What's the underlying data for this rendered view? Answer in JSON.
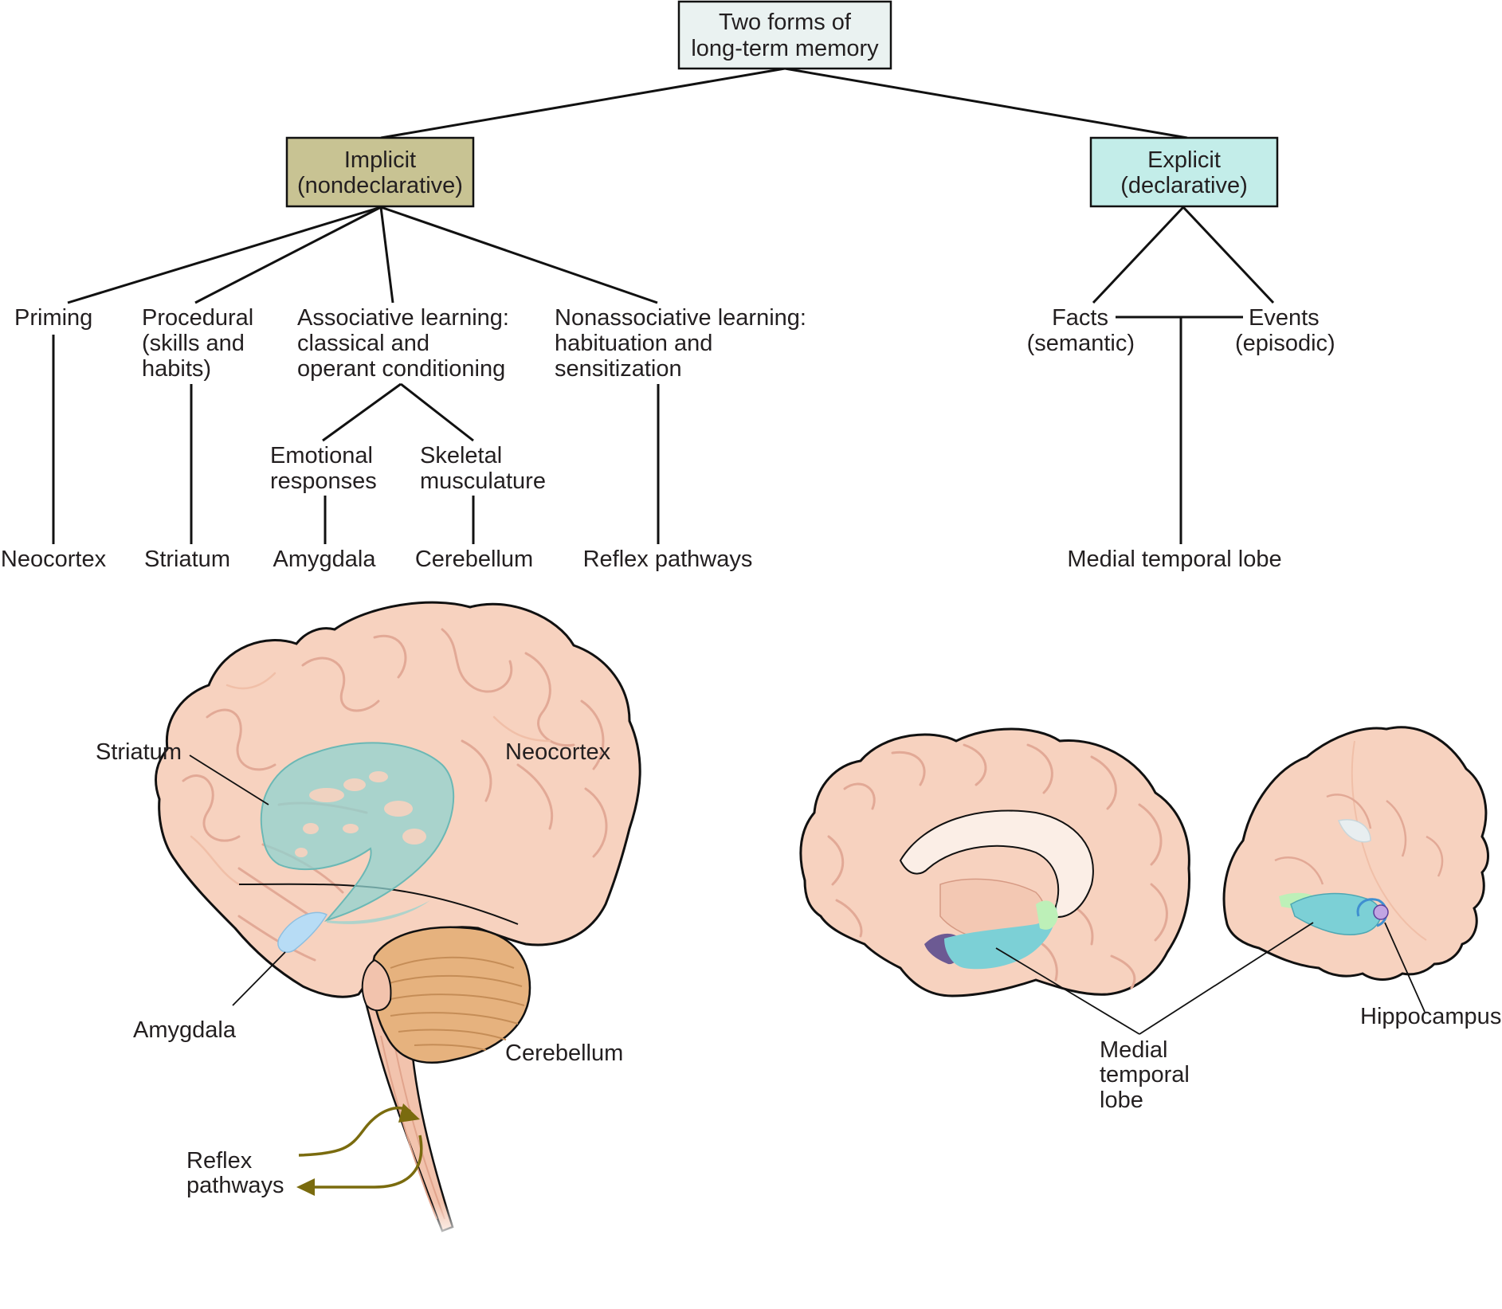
{
  "colors": {
    "root_box": "#eaf2f1",
    "implicit_box": "#c8c393",
    "explicit_box": "#c3ede9",
    "brain_tissue": "#f7d2bf",
    "gyri": "#e2a996",
    "striatum": "#8fd3d0",
    "amygdala": "#b7dcf5",
    "cerebellum": "#e6b27e",
    "reflex_arrow": "#7a6b0e",
    "hippocampus": "#7cd0d6",
    "mtl_dark": "#6c5a93",
    "mtl_green": "#bdf0b8"
  },
  "tree": {
    "root": {
      "line1": "Two forms of",
      "line2": "long-term memory"
    },
    "implicit": {
      "line1": "Implicit",
      "line2": "(nondeclarative)"
    },
    "explicit": {
      "line1": "Explicit",
      "line2": "(declarative)"
    },
    "priming": "Priming",
    "procedural": {
      "line1": "Procedural",
      "line2": "(skills and",
      "line3": "habits)"
    },
    "associative": {
      "line1": "Associative learning:",
      "line2": "classical and",
      "line3": "operant conditioning"
    },
    "nonassociative": {
      "line1": "Nonassociative learning:",
      "line2": "habituation and",
      "line3": "sensitization"
    },
    "emotional": {
      "line1": "Emotional",
      "line2": "responses"
    },
    "skeletal": {
      "line1": "Skeletal",
      "line2": "musculature"
    },
    "facts": {
      "line1": "Facts",
      "line2": "(semantic)"
    },
    "events": {
      "line1": "Events",
      "line2": "(episodic)"
    },
    "neocortex": "Neocortex",
    "striatum": "Striatum",
    "amygdala": "Amygdala",
    "cerebellum": "Cerebellum",
    "reflex": "Reflex pathways",
    "mtl": "Medial temporal lobe"
  },
  "left_brain": {
    "striatum": "Striatum",
    "neocortex": "Neocortex",
    "amygdala": "Amygdala",
    "cerebellum": "Cerebellum",
    "reflex": {
      "line1": "Reflex",
      "line2": "pathways"
    }
  },
  "right_brain": {
    "mtl": {
      "line1": "Medial",
      "line2": "temporal",
      "line3": "lobe"
    },
    "hippocampus": "Hippocampus"
  }
}
